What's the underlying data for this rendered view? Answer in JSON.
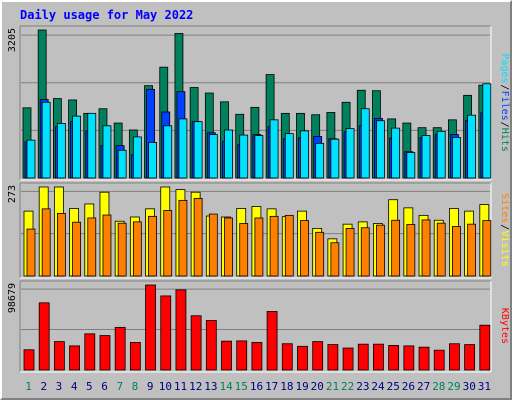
{
  "title": "Daily usage for May 2022",
  "colors": {
    "hits": "#00805c",
    "files": "#0040ff",
    "pages": "#00e0ff",
    "visits": "#ffff00",
    "sites": "#ff8000",
    "kbytes": "#ff0000",
    "weekday_label": "#000080",
    "weekend_label": "#00805c",
    "title": "#0000ff",
    "panel_bg": "#c0c0c0"
  },
  "chart_data": [
    {
      "type": "bar",
      "panel": "hits-files-pages",
      "categories": [
        "1",
        "2",
        "3",
        "4",
        "5",
        "6",
        "7",
        "8",
        "9",
        "10",
        "11",
        "12",
        "13",
        "14",
        "15",
        "16",
        "17",
        "18",
        "19",
        "20",
        "21",
        "22",
        "23",
        "24",
        "25",
        "26",
        "27",
        "28",
        "29",
        "30",
        "31"
      ],
      "weekend_days": [
        "1",
        "7",
        "8",
        "14",
        "15",
        "21",
        "22",
        "28",
        "29"
      ],
      "ymax_label": "3205",
      "ymax": 3205,
      "legend": [
        {
          "text": "Pages",
          "color": "#00e0ff"
        },
        {
          "text": "/",
          "color": "#000000"
        },
        {
          "text": "Files",
          "color": "#0040ff"
        },
        {
          "text": "/",
          "color": "#000000"
        },
        {
          "text": "Hits",
          "color": "#00805c"
        }
      ],
      "series": [
        {
          "name": "Hits",
          "values": [
            1520,
            3205,
            1720,
            1690,
            1400,
            1500,
            1190,
            1040,
            2000,
            2400,
            3130,
            1960,
            1840,
            1650,
            1380,
            1530,
            2240,
            1400,
            1400,
            1370,
            1420,
            1640,
            1900,
            1890,
            1280,
            1190,
            1090,
            1090,
            1260,
            1790,
            2010
          ]
        },
        {
          "name": "Files",
          "values": [
            780,
            1700,
            1110,
            1220,
            1020,
            700,
            700,
            500,
            1920,
            1430,
            1870,
            1220,
            980,
            790,
            720,
            940,
            1110,
            850,
            870,
            900,
            850,
            1000,
            1130,
            1290,
            860,
            570,
            870,
            940,
            940,
            1250,
            1410
          ]
        },
        {
          "name": "Pages",
          "values": [
            820,
            1640,
            1180,
            1340,
            1400,
            1130,
            600,
            890,
            770,
            1130,
            1280,
            1220,
            940,
            1040,
            930,
            920,
            1260,
            960,
            1020,
            750,
            840,
            1070,
            1500,
            1240,
            1080,
            550,
            920,
            1010,
            880,
            1360,
            2040
          ]
        }
      ]
    },
    {
      "type": "bar",
      "panel": "visits-sites",
      "categories": [
        "1",
        "2",
        "3",
        "4",
        "5",
        "6",
        "7",
        "8",
        "9",
        "10",
        "11",
        "12",
        "13",
        "14",
        "15",
        "16",
        "17",
        "18",
        "19",
        "20",
        "21",
        "22",
        "23",
        "24",
        "25",
        "26",
        "27",
        "28",
        "29",
        "30",
        "31"
      ],
      "ymax_label": "273",
      "ymax": 273,
      "legend": [
        {
          "text": "Sites",
          "color": "#ff8000"
        },
        {
          "text": "/",
          "color": "#000000"
        },
        {
          "text": "Visits",
          "color": "#ffff00"
        }
      ],
      "series": [
        {
          "name": "Visits",
          "values": [
            199,
            273,
            273,
            207,
            221,
            257,
            168,
            181,
            206,
            273,
            265,
            257,
            184,
            181,
            207,
            213,
            206,
            182,
            199,
            146,
            114,
            159,
            166,
            161,
            234,
            209,
            186,
            171,
            207,
            199,
            219
          ]
        },
        {
          "name": "Sites",
          "values": [
            144,
            206,
            192,
            165,
            178,
            187,
            162,
            166,
            183,
            201,
            232,
            238,
            190,
            178,
            161,
            178,
            183,
            186,
            170,
            134,
            102,
            146,
            148,
            156,
            171,
            158,
            172,
            162,
            152,
            159,
            170
          ]
        }
      ]
    },
    {
      "type": "bar",
      "panel": "kbytes",
      "categories": [
        "1",
        "2",
        "3",
        "4",
        "5",
        "6",
        "7",
        "8",
        "9",
        "10",
        "11",
        "12",
        "13",
        "14",
        "15",
        "16",
        "17",
        "18",
        "19",
        "20",
        "21",
        "22",
        "23",
        "24",
        "25",
        "26",
        "27",
        "28",
        "29",
        "30",
        "31"
      ],
      "ymax_label": "98679",
      "ymax": 98679,
      "legend": [
        {
          "text": "KBytes",
          "color": "#ff0000"
        }
      ],
      "series": [
        {
          "name": "KBytes",
          "values": [
            23500,
            78000,
            33000,
            28000,
            42000,
            40000,
            49500,
            32000,
            98679,
            86000,
            93000,
            63000,
            57500,
            33500,
            33800,
            32000,
            68000,
            30500,
            27500,
            33000,
            29500,
            25500,
            30000,
            30000,
            28500,
            28000,
            26500,
            23000,
            30500,
            29500,
            52000
          ]
        }
      ]
    }
  ]
}
